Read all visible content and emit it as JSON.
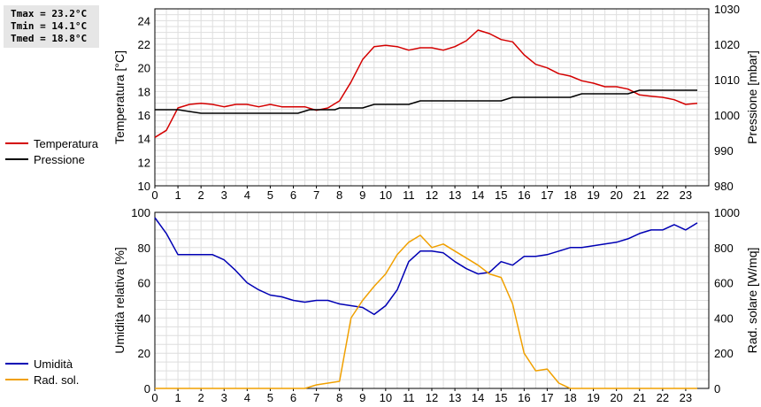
{
  "stats": {
    "tmax": "Tmax = 23.2°C",
    "tmin": "Tmin = 14.1°C",
    "tmed": "Tmed = 18.8°C"
  },
  "legend_top": [
    {
      "label": "Temperatura",
      "color": "#d40000"
    },
    {
      "label": "Pressione",
      "color": "#000000"
    }
  ],
  "legend_bottom": [
    {
      "label": "Umidità",
      "color": "#0000b4"
    },
    {
      "label": "Rad. sol.",
      "color": "#f0a000"
    }
  ],
  "chart_data": [
    {
      "type": "line",
      "xlim": [
        0,
        24
      ],
      "x_ticks": [
        0,
        1,
        2,
        3,
        4,
        5,
        6,
        7,
        8,
        9,
        10,
        11,
        12,
        13,
        14,
        15,
        16,
        17,
        18,
        19,
        20,
        21,
        22,
        23
      ],
      "ylabel_left": "Temperatura [°C]",
      "ylim_left": [
        10,
        25
      ],
      "yticks_left": [
        10,
        12,
        14,
        16,
        18,
        20,
        22,
        24
      ],
      "ylabel_right": "Pressione [mbar]",
      "ylim_right": [
        980,
        1030
      ],
      "yticks_right": [
        980,
        990,
        1000,
        1010,
        1020,
        1030
      ],
      "grid": true,
      "series": [
        {
          "name": "Temperatura",
          "axis": "left",
          "color": "#d40000",
          "x": [
            0,
            0.5,
            1,
            1.5,
            2,
            2.5,
            3,
            3.5,
            4,
            4.5,
            5,
            5.5,
            6,
            6.5,
            7,
            7.5,
            8,
            8.5,
            9,
            9.5,
            10,
            10.5,
            11,
            11.5,
            12,
            12.5,
            13,
            13.5,
            14,
            14.5,
            15,
            15.5,
            16,
            16.5,
            17,
            17.5,
            18,
            18.5,
            19,
            19.5,
            20,
            20.5,
            21,
            21.5,
            22,
            22.5,
            23,
            23.5
          ],
          "y": [
            14.1,
            14.7,
            16.6,
            16.9,
            17.0,
            16.9,
            16.7,
            16.9,
            16.9,
            16.7,
            16.9,
            16.7,
            16.7,
            16.7,
            16.4,
            16.6,
            17.2,
            18.8,
            20.7,
            21.8,
            21.9,
            21.8,
            21.5,
            21.7,
            21.7,
            21.5,
            21.8,
            22.3,
            23.2,
            22.9,
            22.4,
            22.2,
            21.1,
            20.3,
            20.0,
            19.5,
            19.3,
            18.9,
            18.7,
            18.4,
            18.4,
            18.2,
            17.7,
            17.6,
            17.5,
            17.3,
            16.9,
            17.0
          ]
        },
        {
          "name": "Pressione",
          "axis": "right",
          "color": "#000000",
          "x": [
            0,
            1,
            1.5,
            2,
            6.2,
            6.7,
            7.8,
            8,
            9,
            9.5,
            11,
            11.5,
            15,
            15.5,
            18,
            18.5,
            20.5,
            21,
            23.5
          ],
          "y": [
            1001.5,
            1001.5,
            1001,
            1000.5,
            1000.5,
            1001.5,
            1001.5,
            1002,
            1002,
            1003,
            1003,
            1004,
            1004,
            1005,
            1005,
            1006,
            1006,
            1007,
            1007
          ]
        }
      ]
    },
    {
      "type": "line",
      "xlim": [
        0,
        24
      ],
      "x_ticks": [
        0,
        1,
        2,
        3,
        4,
        5,
        6,
        7,
        8,
        9,
        10,
        11,
        12,
        13,
        14,
        15,
        16,
        17,
        18,
        19,
        20,
        21,
        22,
        23
      ],
      "ylabel_left": "Umidità relativa [%]",
      "ylim_left": [
        0,
        100
      ],
      "yticks_left": [
        0,
        20,
        40,
        60,
        80,
        100
      ],
      "ylabel_right": "Rad. solare [W/mq]",
      "ylim_right": [
        0,
        1000
      ],
      "yticks_right": [
        0,
        200,
        400,
        600,
        800,
        1000
      ],
      "grid": true,
      "series": [
        {
          "name": "Umidità",
          "axis": "left",
          "color": "#0000b4",
          "x": [
            0,
            0.5,
            1,
            1.5,
            2,
            2.5,
            3,
            3.5,
            4,
            4.5,
            5,
            5.5,
            6,
            6.5,
            7,
            7.5,
            8,
            8.5,
            9,
            9.5,
            10,
            10.5,
            11,
            11.5,
            12,
            12.5,
            13,
            13.5,
            14,
            14.5,
            15,
            15.5,
            16,
            16.5,
            17,
            17.5,
            18,
            18.5,
            19,
            19.5,
            20,
            20.5,
            21,
            21.5,
            22,
            22.5,
            23,
            23.5
          ],
          "y": [
            97,
            88,
            76,
            76,
            76,
            76,
            73,
            67,
            60,
            56,
            53,
            52,
            50,
            49,
            50,
            50,
            48,
            47,
            46,
            42,
            47,
            56,
            72,
            78,
            78,
            77,
            72,
            68,
            65,
            66,
            72,
            70,
            75,
            75,
            76,
            78,
            80,
            80,
            81,
            82,
            83,
            85,
            88,
            90,
            90,
            93,
            90,
            94
          ]
        },
        {
          "name": "Rad. sol.",
          "axis": "right",
          "color": "#f0a000",
          "x": [
            0,
            6.5,
            7,
            7.5,
            8,
            8.5,
            9,
            9.5,
            10,
            10.5,
            11,
            11.5,
            12,
            12.5,
            13,
            13.5,
            14,
            14.5,
            15,
            15.5,
            16,
            16.5,
            17,
            17.5,
            18,
            18.5,
            23.5
          ],
          "y": [
            0,
            0,
            20,
            30,
            40,
            400,
            500,
            580,
            650,
            760,
            830,
            870,
            800,
            820,
            780,
            740,
            700,
            650,
            630,
            480,
            200,
            100,
            110,
            30,
            0,
            0,
            0
          ]
        }
      ]
    }
  ]
}
